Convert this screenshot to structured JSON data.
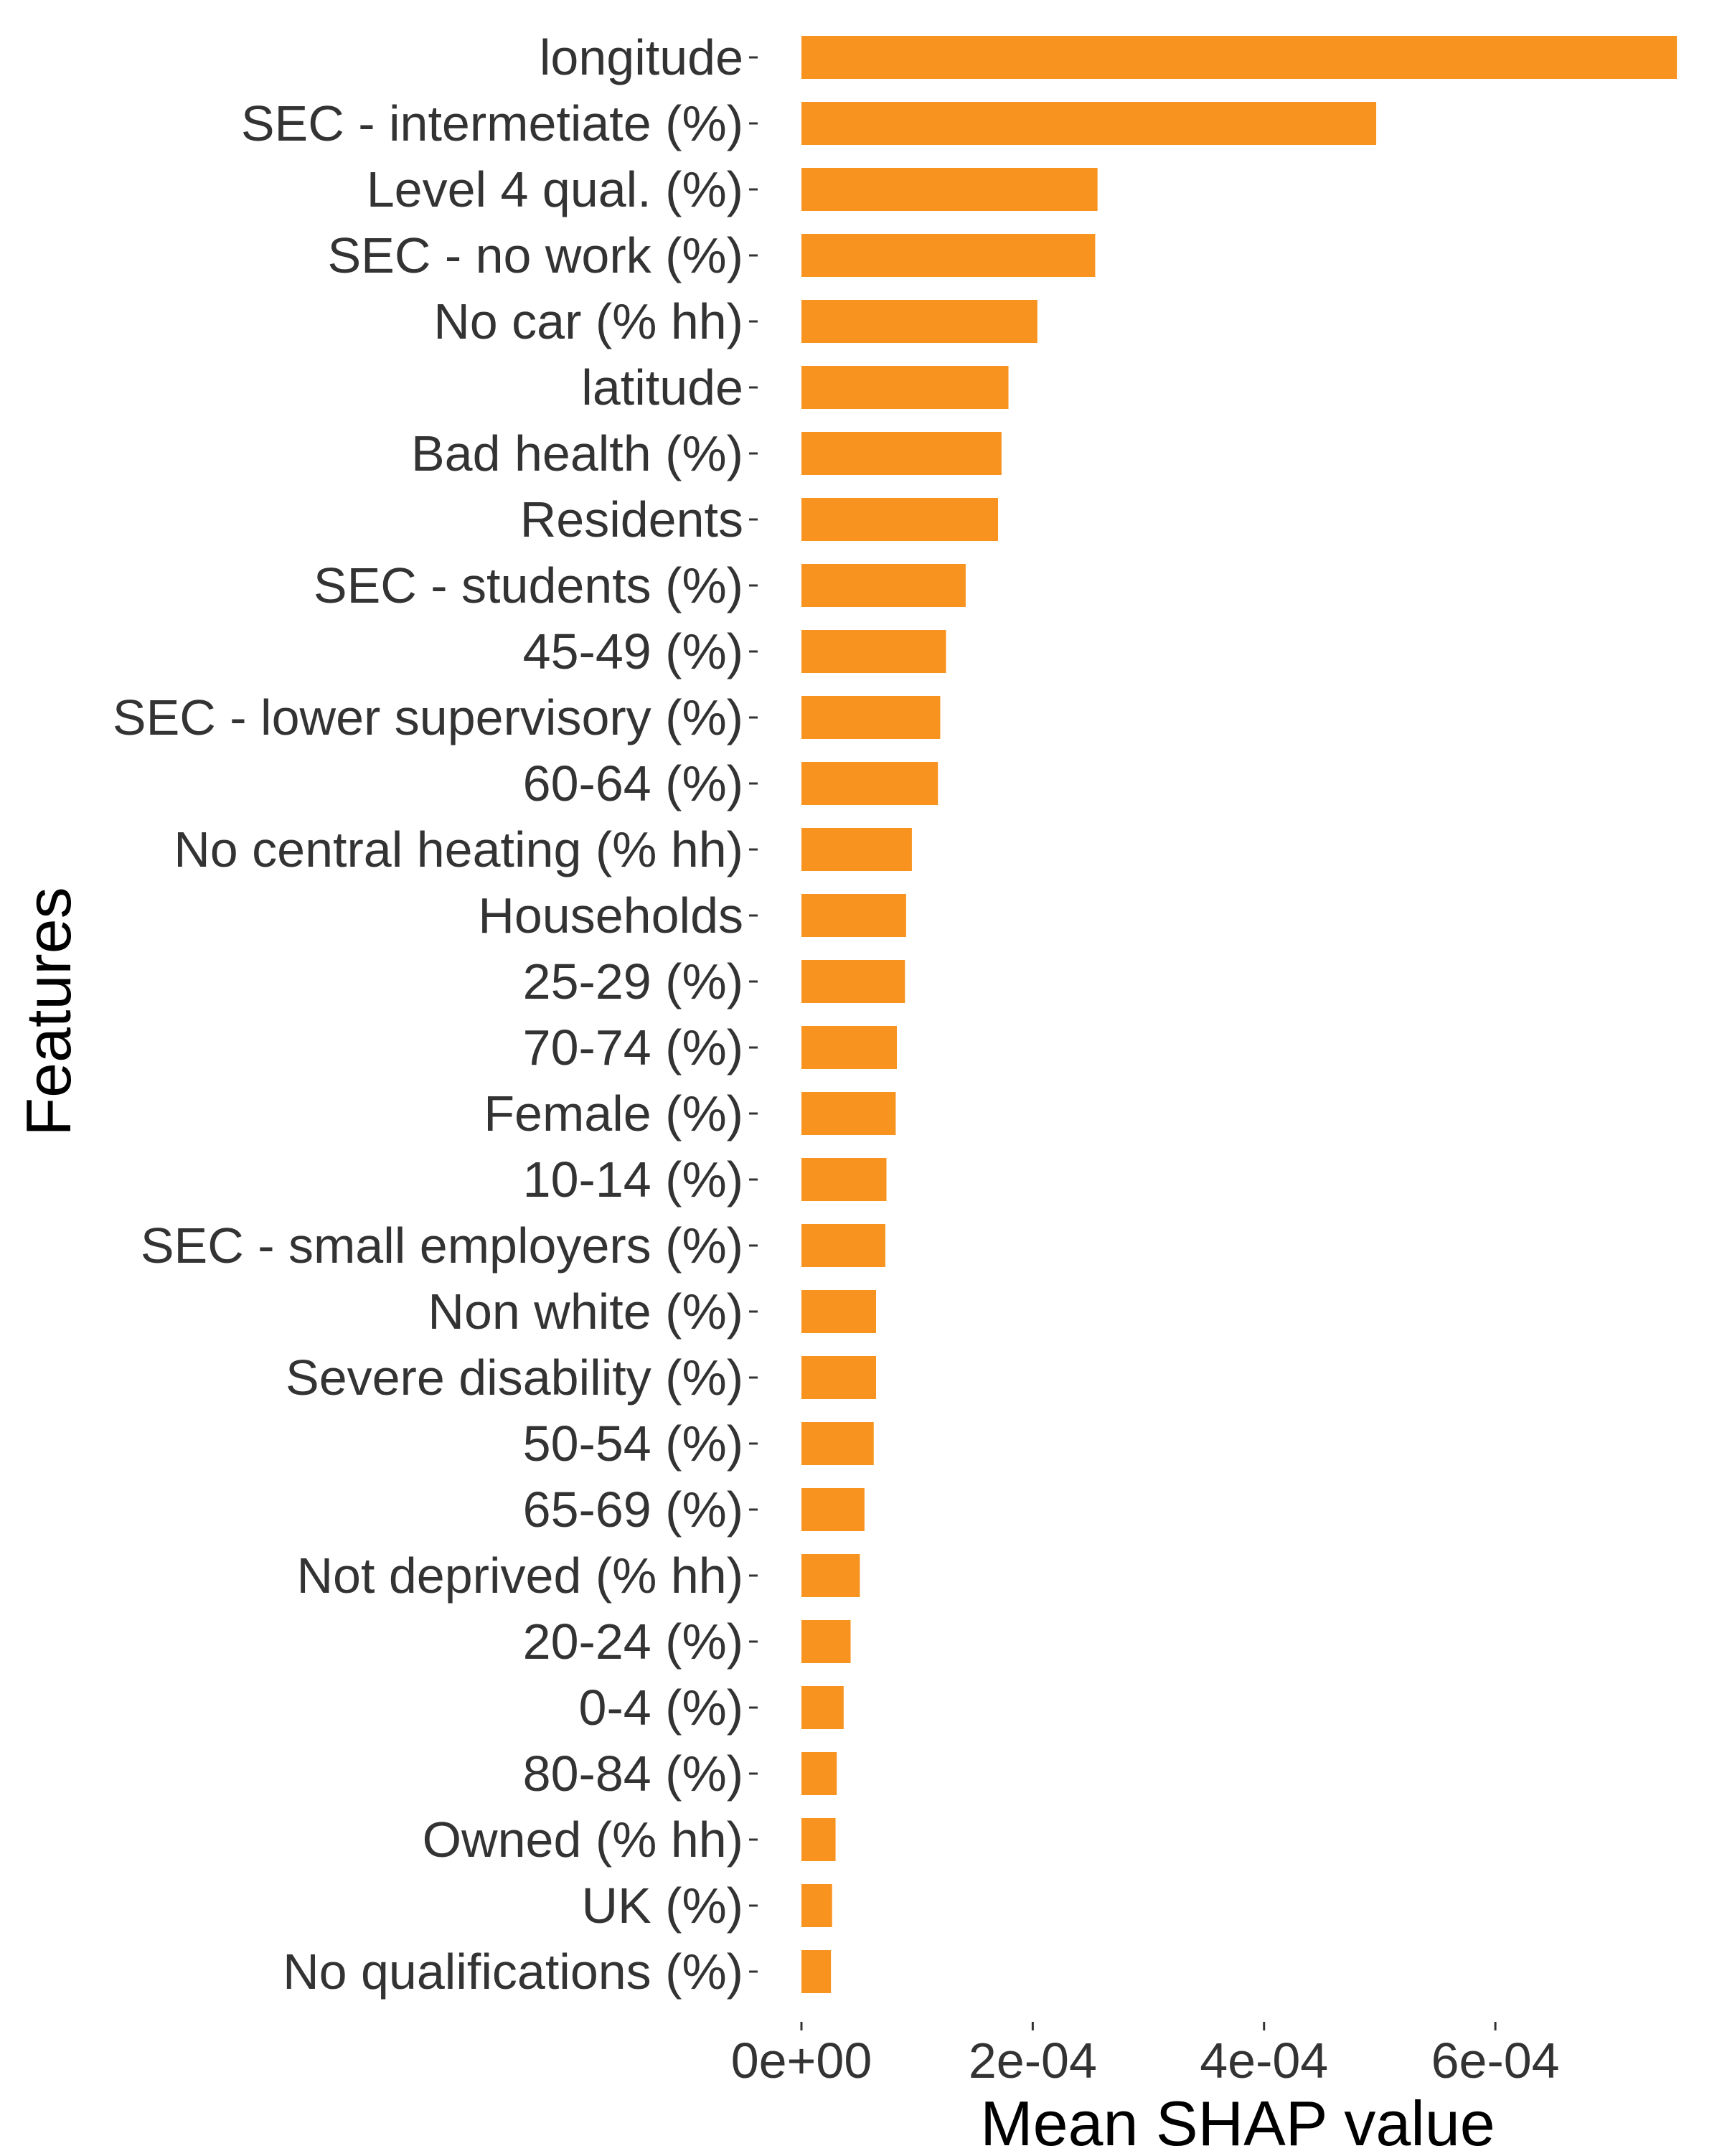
{
  "chart_data": {
    "type": "bar",
    "orientation": "horizontal",
    "title": "",
    "xlabel": "Mean SHAP value",
    "ylabel": "Features",
    "xlim": [
      0,
      0.00076
    ],
    "x_ticks": [
      {
        "value": 0,
        "label": "0e+00"
      },
      {
        "value": 0.0002,
        "label": "2e-04"
      },
      {
        "value": 0.0004,
        "label": "4e-04"
      },
      {
        "value": 0.0006,
        "label": "6e-04"
      }
    ],
    "grid": false,
    "legend": "none",
    "bar_color": "#F7931E",
    "categories": [
      "longitude",
      "SEC - intermetiate (%)",
      "Level 4 qual. (%)",
      "SEC - no work (%)",
      "No car (% hh)",
      "latitude",
      "Bad health (%)",
      "Residents",
      "SEC - students (%)",
      "45-49 (%)",
      "SEC - lower supervisory (%)",
      "60-64 (%)",
      "No central heating (% hh)",
      "Households",
      "25-29 (%)",
      "70-74 (%)",
      "Female (%)",
      "10-14 (%)",
      "SEC - small employers (%)",
      "Non white (%)",
      "Severe disability (%)",
      "50-54 (%)",
      "65-69 (%)",
      "Not deprived (% hh)",
      "20-24 (%)",
      "0-4 (%)",
      "80-84 (%)",
      "Owned (% hh)",
      "UK (%)",
      "No qualifications (%)"
    ],
    "values": [
      0.000757,
      0.000497,
      0.000256,
      0.000254,
      0.000204,
      0.000179,
      0.000173,
      0.00017,
      0.000142,
      0.000125,
      0.00012,
      0.000118,
      9.55e-05,
      9.05e-05,
      8.95e-05,
      8.25e-05,
      8.15e-05,
      7.35e-05,
      7.25e-05,
      6.45e-05,
      6.45e-05,
      6.25e-05,
      5.45e-05,
      5.05e-05,
      4.25e-05,
      3.65e-05,
      3.05e-05,
      2.95e-05,
      2.65e-05,
      2.55e-05
    ]
  }
}
